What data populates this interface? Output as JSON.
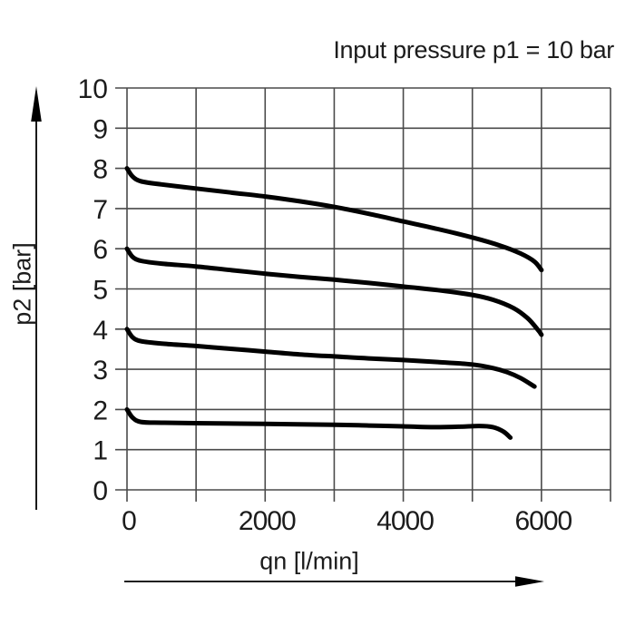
{
  "title": "Input pressure p1 = 10 bar",
  "colors": {
    "background": "#ffffff",
    "grid": "#4a4a4a",
    "curve": "#000000",
    "text": "#1c1c1c",
    "arrow": "#000000"
  },
  "chart_data": {
    "type": "line",
    "title": "Input pressure p1 = 10 bar",
    "xlabel": "qn [l/min]",
    "ylabel": "p2 [bar]",
    "xlim": [
      0,
      7000
    ],
    "ylim": [
      0,
      10
    ],
    "x_grid_step": 1000,
    "y_grid_step": 1,
    "grid": true,
    "legend": "none",
    "x_tick_labels": [
      {
        "value": 0,
        "label": "0"
      },
      {
        "value": 2000,
        "label": "2000"
      },
      {
        "value": 4000,
        "label": "4000"
      },
      {
        "value": 6000,
        "label": "6000"
      }
    ],
    "y_tick_labels": [
      {
        "value": 0,
        "label": "0"
      },
      {
        "value": 1,
        "label": "1"
      },
      {
        "value": 2,
        "label": "2"
      },
      {
        "value": 3,
        "label": "3"
      },
      {
        "value": 4,
        "label": "4"
      },
      {
        "value": 5,
        "label": "5"
      },
      {
        "value": 6,
        "label": "6"
      },
      {
        "value": 7,
        "label": "7"
      },
      {
        "value": 8,
        "label": "8"
      },
      {
        "value": 9,
        "label": "9"
      },
      {
        "value": 10,
        "label": "10"
      }
    ],
    "series": [
      {
        "name": "set-pressure-8-bar",
        "points": [
          [
            0,
            8.0
          ],
          [
            80,
            7.8
          ],
          [
            200,
            7.68
          ],
          [
            500,
            7.6
          ],
          [
            1000,
            7.5
          ],
          [
            1500,
            7.4
          ],
          [
            2000,
            7.3
          ],
          [
            2500,
            7.18
          ],
          [
            3000,
            7.04
          ],
          [
            3500,
            6.87
          ],
          [
            4000,
            6.68
          ],
          [
            4500,
            6.49
          ],
          [
            5000,
            6.28
          ],
          [
            5400,
            6.08
          ],
          [
            5700,
            5.88
          ],
          [
            5900,
            5.68
          ],
          [
            6000,
            5.47
          ]
        ]
      },
      {
        "name": "set-pressure-6-bar",
        "points": [
          [
            0,
            6.0
          ],
          [
            80,
            5.8
          ],
          [
            200,
            5.7
          ],
          [
            500,
            5.63
          ],
          [
            1000,
            5.56
          ],
          [
            1500,
            5.47
          ],
          [
            2000,
            5.38
          ],
          [
            2500,
            5.3
          ],
          [
            3000,
            5.23
          ],
          [
            3500,
            5.15
          ],
          [
            4000,
            5.06
          ],
          [
            4500,
            4.97
          ],
          [
            5000,
            4.85
          ],
          [
            5300,
            4.73
          ],
          [
            5600,
            4.52
          ],
          [
            5800,
            4.27
          ],
          [
            5950,
            3.98
          ],
          [
            6000,
            3.86
          ]
        ]
      },
      {
        "name": "set-pressure-4-bar",
        "points": [
          [
            0,
            4.0
          ],
          [
            80,
            3.8
          ],
          [
            200,
            3.7
          ],
          [
            500,
            3.64
          ],
          [
            1000,
            3.58
          ],
          [
            1500,
            3.51
          ],
          [
            2000,
            3.44
          ],
          [
            2500,
            3.37
          ],
          [
            3000,
            3.32
          ],
          [
            3500,
            3.27
          ],
          [
            4000,
            3.23
          ],
          [
            4500,
            3.18
          ],
          [
            5000,
            3.12
          ],
          [
            5300,
            3.03
          ],
          [
            5500,
            2.93
          ],
          [
            5700,
            2.78
          ],
          [
            5900,
            2.57
          ]
        ]
      },
      {
        "name": "set-pressure-2-bar",
        "points": [
          [
            0,
            2.0
          ],
          [
            80,
            1.8
          ],
          [
            200,
            1.69
          ],
          [
            500,
            1.67
          ],
          [
            1000,
            1.66
          ],
          [
            2000,
            1.64
          ],
          [
            3000,
            1.62
          ],
          [
            3500,
            1.6
          ],
          [
            4000,
            1.58
          ],
          [
            4400,
            1.56
          ],
          [
            4800,
            1.57
          ],
          [
            5100,
            1.59
          ],
          [
            5300,
            1.56
          ],
          [
            5450,
            1.45
          ],
          [
            5550,
            1.3
          ]
        ]
      }
    ]
  }
}
